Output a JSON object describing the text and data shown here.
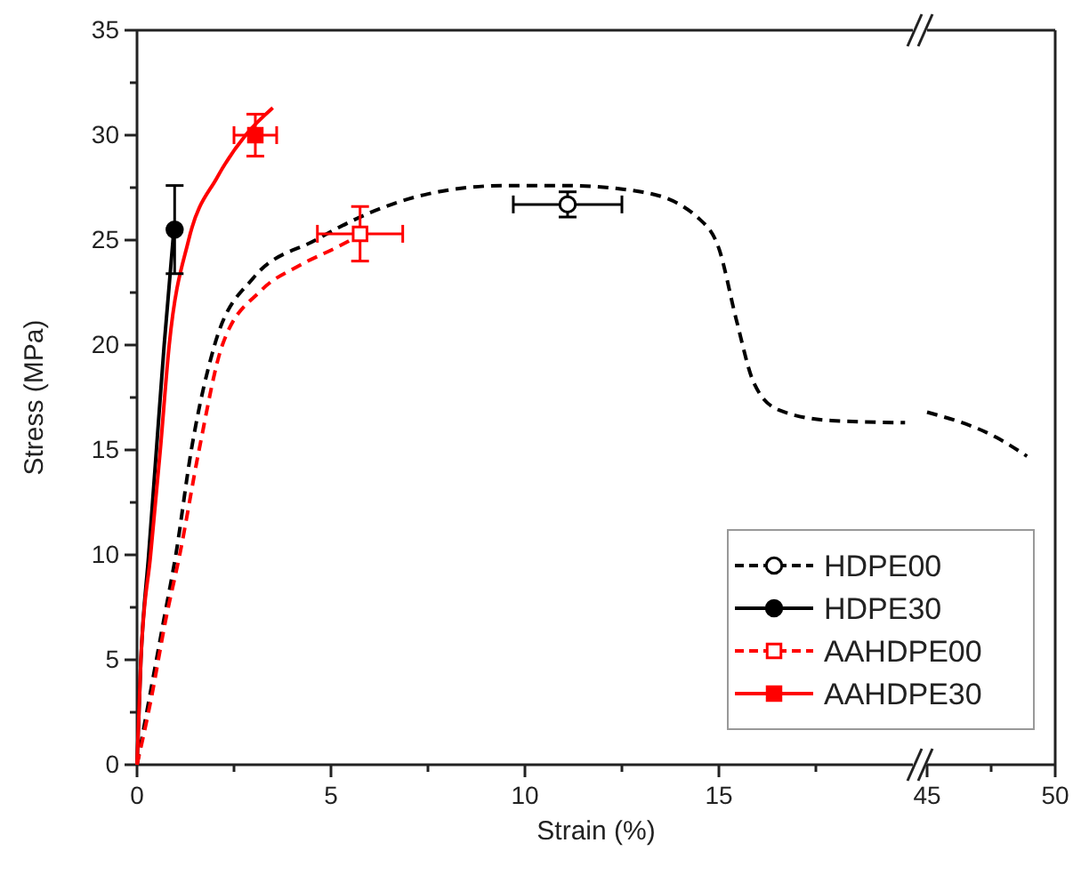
{
  "chart_data": [
    {
      "type": "line",
      "xlabel": "Strain (%)",
      "ylabel": "Stress (MPa)",
      "xlim": [
        0,
        20
      ],
      "ylim": [
        0,
        35
      ],
      "xticks": [
        0,
        {
          "value": 2.5,
          "label": null
        },
        5,
        {
          "value": 7.5,
          "label": null
        },
        10,
        {
          "value": 12.5,
          "label": null
        },
        15,
        {
          "value": 17.5,
          "label": null
        }
      ],
      "yticks": [
        0,
        {
          "value": 2.5,
          "label": null
        },
        5,
        {
          "value": 7.5,
          "label": null
        },
        10,
        {
          "value": 12.5,
          "label": null
        },
        15,
        {
          "value": 17.5,
          "label": null
        },
        20,
        {
          "value": 22.5,
          "label": null
        },
        25,
        {
          "value": 27.5,
          "label": null
        },
        30,
        {
          "value": 32.5,
          "label": null
        },
        35
      ],
      "legend": "bottom right",
      "series": [
        {
          "color": "#000000",
          "line_style": "dashed",
          "x": [
            0,
            0.3,
            0.7,
            1.0,
            1.4,
            2.0,
            3.0,
            4.6,
            6.0,
            7.5,
            9.5,
            11.0,
            13.0,
            14.5,
            15.0,
            15.45,
            15.9,
            16.55,
            17.9,
            19.8
          ],
          "values": [
            0,
            3,
            7,
            10,
            15,
            20,
            23.2,
            25,
            26.3,
            27.2,
            27.6,
            27.6,
            27.3,
            26.0,
            24.6,
            21.2,
            18.2,
            16.9,
            16.4,
            16.3
          ]
        },
        {
          "color": "#000000",
          "line_style": "solid",
          "x": [
            0,
            0.1,
            0.3,
            0.5,
            0.7,
            0.95
          ],
          "values": [
            0,
            5,
            10,
            15,
            20,
            25.5
          ]
        },
        {
          "color": "#ff0000",
          "line_style": "dashed",
          "x": [
            0,
            0.35,
            0.75,
            1.1,
            1.6,
            2.2,
            3.2,
            4.2,
            5.2,
            5.8
          ],
          "values": [
            0,
            3,
            7,
            10,
            15,
            20,
            22.6,
            23.8,
            24.7,
            25.3
          ]
        },
        {
          "color": "#ff0000",
          "line_style": "solid",
          "x": [
            0,
            0.1,
            0.35,
            0.6,
            0.83,
            1.33,
            2.07,
            2.8,
            3.5
          ],
          "values": [
            0,
            5,
            10,
            15,
            20,
            25,
            28,
            30,
            31.3
          ]
        },
        {
          "type": "scatter",
          "name": "HDPE00",
          "color": "#000000",
          "marker": "circle",
          "line_style": "dashed",
          "x": [
            11.1
          ],
          "values": [
            26.7
          ],
          "errors": [
            0.6
          ],
          "xerrors": [
            1.4
          ]
        },
        {
          "type": "scatter",
          "name": "HDPE30",
          "color": "#000000",
          "marker": "circle",
          "line_style": "solid",
          "x": [
            0.97
          ],
          "values": [
            25.5
          ],
          "errors": [
            2.1
          ],
          "xerrors": [
            null
          ]
        },
        {
          "type": "scatter",
          "name": "AAHDPE00",
          "color": "#ff0000",
          "marker": "square",
          "line_style": "dashed",
          "x": [
            5.75
          ],
          "values": [
            25.3
          ],
          "errors": [
            1.3
          ],
          "xerrors": [
            1.1
          ]
        },
        {
          "type": "scatter",
          "name": "AAHDPE30",
          "color": "#ff0000",
          "marker": "square",
          "line_style": "solid",
          "x": [
            3.05
          ],
          "values": [
            30.0
          ],
          "errors": [
            1.0
          ],
          "xerrors": [
            0.55
          ]
        }
      ]
    },
    {
      "type": "line",
      "xlim": [
        45,
        50
      ],
      "ylim": [
        0,
        35
      ],
      "tick_labels": "x",
      "xticks": [
        45,
        {
          "value": 47.5,
          "label": null
        },
        50
      ],
      "series": [
        {
          "color": "#000000",
          "line_style": "dashed",
          "x": [
            45,
            47.7,
            48.9
          ],
          "values": [
            16.8,
            15.6,
            14.7
          ]
        }
      ]
    }
  ]
}
